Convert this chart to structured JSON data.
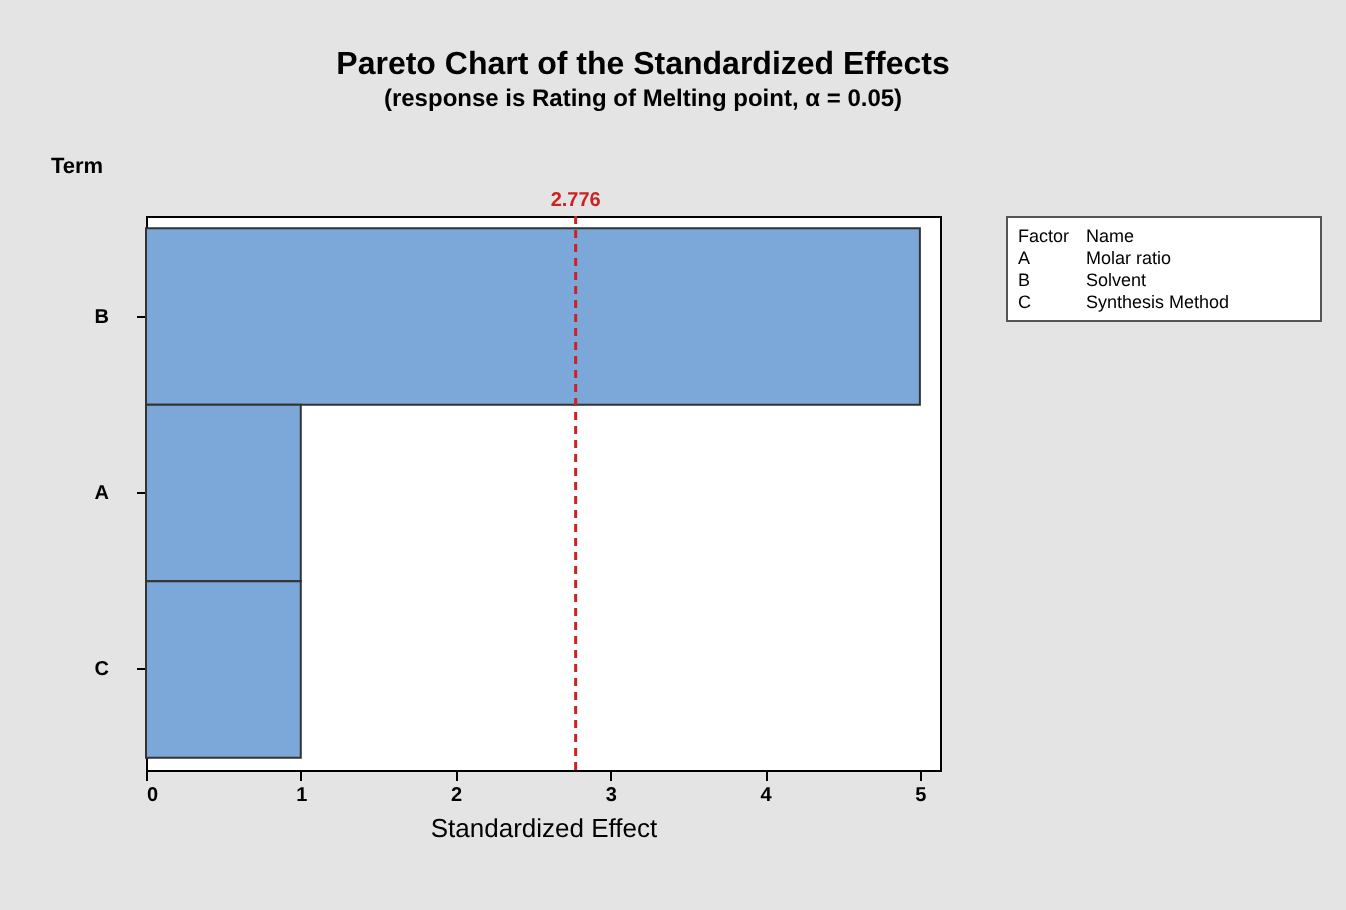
{
  "chart_data": {
    "type": "bar",
    "orientation": "horizontal",
    "title": "Pareto Chart of the Standardized Effects",
    "subtitle": "(response is Rating of Melting point, α = 0.05)",
    "xlabel": "Standardized Effect",
    "ylabel": "Term",
    "categories": [
      "B",
      "A",
      "C"
    ],
    "values": [
      5.0,
      1.0,
      1.0
    ],
    "color": "#7ba7d9",
    "xlim": [
      0,
      5.13
    ],
    "xticks": [
      0,
      1,
      2,
      3,
      4,
      5
    ],
    "grid": false,
    "ref_lines": [
      {
        "axis": "x",
        "value": 2.776,
        "label": "2.776",
        "color": "#cc2222",
        "line_style": "dashed"
      }
    ],
    "annotations": [
      "Factor",
      "Name",
      "A",
      "Molar ratio",
      "B",
      "Solvent",
      "C",
      "Synthesis Method"
    ]
  }
}
